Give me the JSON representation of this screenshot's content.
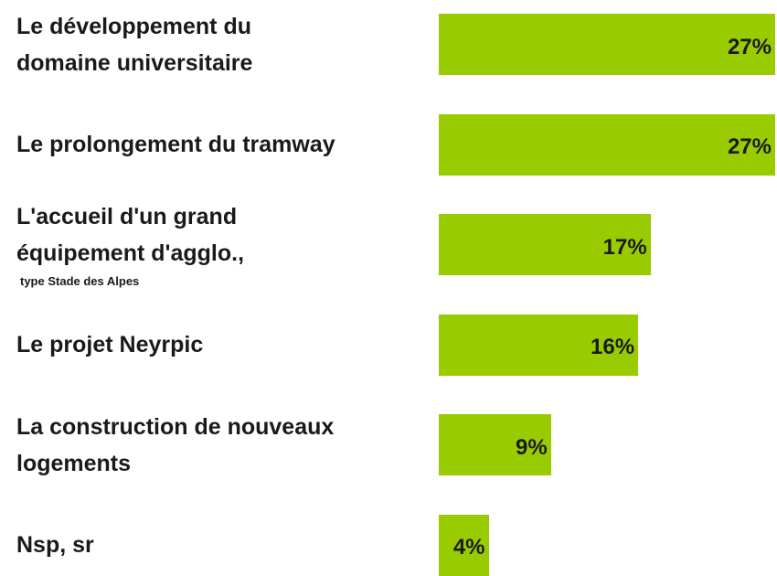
{
  "chart_data": {
    "type": "hbar",
    "categories": [
      "Le développement du domaine universitaire",
      "Le prolongement du tramway",
      "L'accueil d'un grand équipement d'agglo.,",
      "Le projet Neyrpic",
      "La construction de nouveaux logements",
      "Nsp, sr"
    ],
    "category_sublabels": [
      null,
      null,
      "type Stade des Alpes",
      null,
      null,
      null
    ],
    "values": [
      27,
      27,
      17,
      16,
      9,
      4
    ],
    "value_labels": [
      "27%",
      "27%",
      "17%",
      "16%",
      "9%",
      "4%"
    ],
    "color": "#99cc00"
  }
}
